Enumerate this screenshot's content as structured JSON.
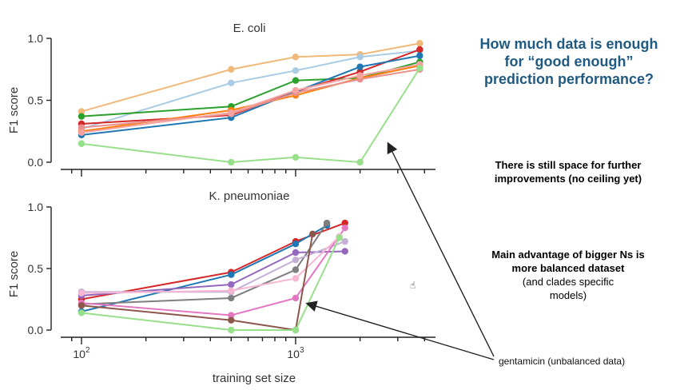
{
  "chart_data": [
    {
      "type": "line",
      "title": "E. coli",
      "xlabel": "",
      "ylabel": "F1 score",
      "xscale": "log",
      "xlim": [
        80,
        4500
      ],
      "ylim": [
        0,
        1.0
      ],
      "yticks": [
        "0.0",
        "0.5",
        "1.0"
      ],
      "x": [
        100,
        500,
        1000,
        2000,
        3800
      ],
      "series": [
        {
          "color": "#f0b97a",
          "values": [
            0.41,
            0.75,
            0.85,
            0.87,
            0.96
          ]
        },
        {
          "color": "#a9cbe3",
          "values": [
            0.27,
            0.64,
            0.74,
            0.85,
            0.9
          ]
        },
        {
          "color": "#2ca02c",
          "values": [
            0.37,
            0.45,
            0.66,
            0.68,
            0.81
          ]
        },
        {
          "color": "#d62728",
          "values": [
            0.31,
            0.38,
            0.57,
            0.73,
            0.91
          ]
        },
        {
          "color": "#1f77b4",
          "values": [
            0.22,
            0.36,
            0.57,
            0.77,
            0.86
          ]
        },
        {
          "color": "#ff7f0e",
          "values": [
            0.25,
            0.42,
            0.54,
            0.68,
            0.78
          ]
        },
        {
          "color": "#e8908d",
          "values": [
            0.28,
            0.39,
            0.56,
            0.67,
            0.75
          ]
        },
        {
          "color": "#f5a3a0",
          "values": [
            0.24,
            0.4,
            0.58,
            0.7,
            0.79
          ]
        },
        {
          "color": "#98df8a",
          "values": [
            0.15,
            0.0,
            0.04,
            0.0,
            0.76
          ]
        }
      ]
    },
    {
      "type": "line",
      "title": "K. pneumoniae",
      "xlabel": "training set size",
      "ylabel": "F1 score",
      "xscale": "log",
      "xlim": [
        80,
        4500
      ],
      "ylim": [
        0,
        1.0
      ],
      "yticks": [
        "0.0",
        "0.5",
        "1.0"
      ],
      "xticks": [
        {
          "base": "10",
          "exp": "2",
          "value": 100
        },
        {
          "base": "10",
          "exp": "3",
          "value": 1000
        }
      ],
      "series": [
        {
          "color": "#d62728",
          "x": [
            100,
            500,
            1000,
            1700
          ],
          "values": [
            0.25,
            0.47,
            0.72,
            0.87
          ]
        },
        {
          "color": "#1f77b4",
          "x": [
            100,
            500,
            1000,
            1400
          ],
          "values": [
            0.15,
            0.45,
            0.7,
            0.85
          ]
        },
        {
          "color": "#9467bd",
          "x": [
            100,
            500,
            1000,
            1700
          ],
          "values": [
            0.28,
            0.37,
            0.63,
            0.64
          ]
        },
        {
          "color": "#7f7f7f",
          "x": [
            100,
            500,
            1000,
            1400
          ],
          "values": [
            0.21,
            0.26,
            0.49,
            0.87
          ]
        },
        {
          "color": "#c5b0d5",
          "x": [
            100,
            500,
            1000,
            1700
          ],
          "values": [
            0.31,
            0.31,
            0.57,
            0.72
          ]
        },
        {
          "color": "#e377c2",
          "x": [
            100,
            500,
            1000,
            1700
          ],
          "values": [
            0.22,
            0.12,
            0.26,
            0.83
          ]
        },
        {
          "color": "#f7b6d2",
          "x": [
            100,
            500,
            1000,
            1600
          ],
          "values": [
            0.3,
            0.32,
            0.42,
            0.76
          ]
        },
        {
          "color": "#8c564b",
          "x": [
            100,
            500,
            1000,
            1200
          ],
          "values": [
            0.2,
            0.08,
            0.0,
            0.78
          ]
        },
        {
          "color": "#98df8a",
          "x": [
            100,
            500,
            1000,
            1600
          ],
          "values": [
            0.14,
            0.0,
            0.0,
            0.75
          ]
        }
      ]
    }
  ],
  "annotations": {
    "headline": "How much data is enough for “good enough” prediction performance?",
    "note1": "There is still space for further improvements (no ceiling yet)",
    "note2_bold": "Main advantage of bigger Ns is more balanced dataset",
    "note2_plain": "(and clades specific models)",
    "arrow_label": "gentamicin (unbalanced data)",
    "cursor_glyph": "☝"
  }
}
